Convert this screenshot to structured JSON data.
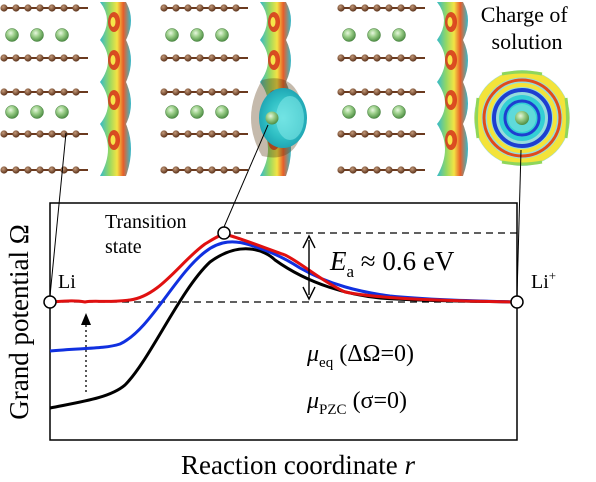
{
  "top_label": {
    "line1": "Charge of",
    "line2": "solution"
  },
  "plot": {
    "ylabel": "Grand potential Ω",
    "xlabel_text": "Reaction coordinate ",
    "xlabel_var": "r",
    "left_state": "Li",
    "right_state_base": "Li",
    "right_state_sup": "+",
    "ts_line1": "Transition",
    "ts_line2": "state",
    "barrier_sym": "E",
    "barrier_sub": "a",
    "barrier_value": " ≈ 0.6 eV",
    "legend": [
      {
        "mu": "μ",
        "sub": "eq",
        "cond": " (ΔΩ=0)",
        "color": "#e00000"
      },
      {
        "mu": "μ",
        "sub": "PZC",
        "cond": " (σ=0)",
        "color": "#000000"
      }
    ],
    "colors": {
      "red": "#e01010",
      "blue": "#1030e0",
      "black": "#000000"
    }
  }
}
